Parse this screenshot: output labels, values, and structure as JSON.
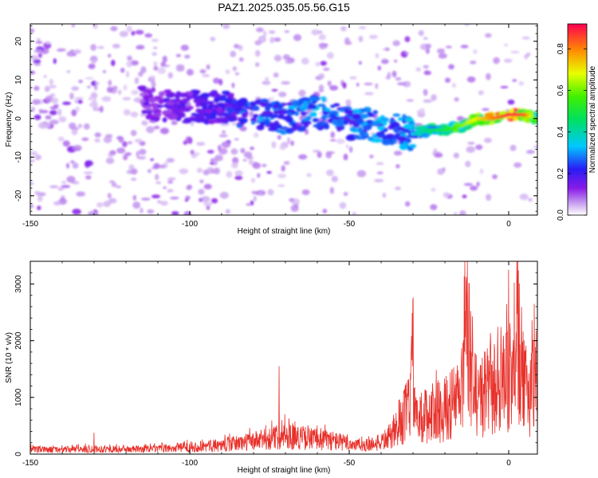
{
  "title": "PAZ1.2025.035.05.56.G15",
  "colors": {
    "snr_line": "#e8302a",
    "frame": "#000000"
  },
  "chart_data": [
    {
      "type": "heatmap",
      "xlabel": "Height of straight line (km)",
      "ylabel": "Frequency (Hz)",
      "xlim": [
        -150,
        9
      ],
      "ylim": [
        -25,
        24.5
      ],
      "xticks": [
        -150,
        -100,
        -50,
        0
      ],
      "yticks": [
        -20,
        -10,
        0,
        10,
        20
      ],
      "colormap": "rainbow (purple-blue-cyan-green-yellow-orange-red)",
      "colorbar": {
        "label": "Normalized spectral amplitude",
        "range": [
          0.0,
          0.92
        ],
        "ticks": [
          0.0,
          0.2,
          0.4,
          0.6,
          0.8
        ]
      },
      "ridge": {
        "description": "dominant frequency ridge",
        "x": [
          -115,
          -100,
          -90,
          -80,
          -70,
          -60,
          -50,
          -42,
          -35,
          -30,
          -25,
          -20,
          -15,
          -10,
          -5,
          0,
          5,
          9
        ],
        "y": [
          4,
          3,
          3,
          1,
          0,
          2,
          -1,
          -2,
          -3,
          -4,
          -3,
          -3,
          -2,
          0,
          0,
          1,
          1,
          0
        ],
        "amplitude": [
          0.15,
          0.2,
          0.22,
          0.3,
          0.3,
          0.35,
          0.3,
          0.35,
          0.3,
          0.35,
          0.45,
          0.5,
          0.6,
          0.7,
          0.8,
          0.9,
          0.85,
          0.5
        ]
      }
    },
    {
      "type": "line",
      "xlabel": "Height of straight line (km)",
      "ylabel": "SNR (10 * v/v)",
      "xlim": [
        -150,
        9
      ],
      "ylim": [
        0,
        3400
      ],
      "xticks": [
        -150,
        -100,
        -50,
        0
      ],
      "yticks": [
        0,
        1000,
        2000,
        3000
      ],
      "envelope": {
        "x": [
          -150,
          -140,
          -130,
          -120,
          -110,
          -100,
          -90,
          -80,
          -75,
          -70,
          -65,
          -60,
          -55,
          -50,
          -45,
          -40,
          -35,
          -31,
          -30,
          -29,
          -25,
          -20,
          -15,
          -13,
          -10,
          -5,
          0,
          3,
          5,
          9
        ],
        "y": [
          130,
          130,
          150,
          140,
          150,
          200,
          260,
          380,
          450,
          550,
          480,
          430,
          400,
          300,
          250,
          350,
          650,
          1500,
          2700,
          900,
          1200,
          1300,
          1700,
          3300,
          1600,
          1900,
          2100,
          3200,
          1800,
          2300
        ]
      },
      "peaks": [
        {
          "x": -130,
          "y": 380
        },
        {
          "x": -72,
          "y": 1550
        },
        {
          "x": -30,
          "y": 2760
        },
        {
          "x": -13,
          "y": 3400
        },
        {
          "x": 0,
          "y": 3250
        },
        {
          "x": 8,
          "y": 2650
        }
      ]
    }
  ]
}
